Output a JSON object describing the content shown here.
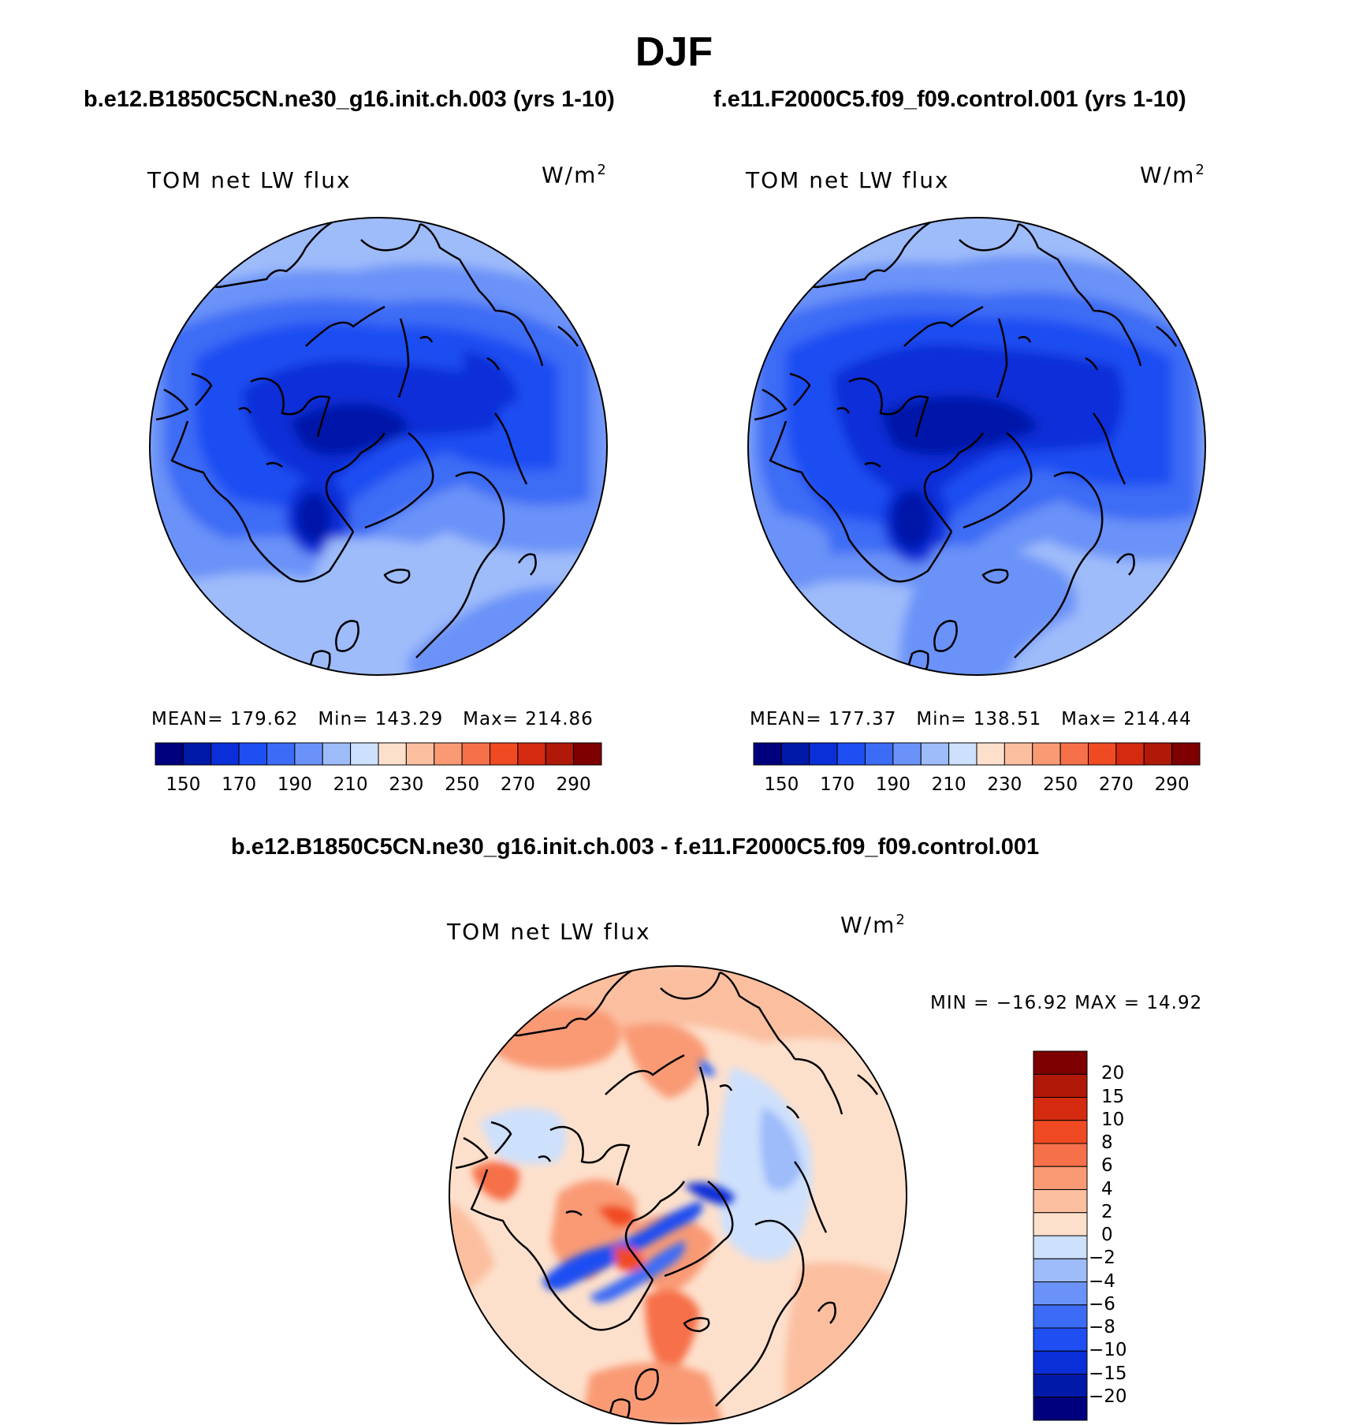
{
  "title": "DJF",
  "panels": [
    {
      "case_title": "b.e12.B1850C5CN.ne30_g16.init.ch.003 (yrs 1-10)",
      "variable": "TOM net LW flux",
      "units_base": "W/m",
      "units_exp": "2",
      "stats": {
        "mean_label": "MEAN=",
        "mean": "179.62",
        "min_label": "Min=",
        "min": "143.29",
        "max_label": "Max=",
        "max": "214.86"
      }
    },
    {
      "case_title": "f.e11.F2000C5.f09_f09.control.001 (yrs 1-10)",
      "variable": "TOM net LW flux",
      "units_base": "W/m",
      "units_exp": "2",
      "stats": {
        "mean_label": "MEAN=",
        "mean": "177.37",
        "min_label": "Min=",
        "min": "138.51",
        "max_label": "Max=",
        "max": "214.44"
      }
    }
  ],
  "diff_panel": {
    "case_title": "b.e12.B1850C5CN.ne30_g16.init.ch.003 - f.e11.F2000C5.f09_f09.control.001",
    "variable": "TOM net LW flux",
    "units_base": "W/m",
    "units_exp": "2",
    "minmax": "MIN = −16.92 MAX =   14.92"
  },
  "abs_colorbar": {
    "colors": [
      "#00007f",
      "#0019a8",
      "#0a2fd8",
      "#1f4ef2",
      "#3c6cf5",
      "#6a92f8",
      "#9ebbfa",
      "#cde0fc",
      "#fde0cc",
      "#fbbfa0",
      "#f99a74",
      "#f6704a",
      "#f04a22",
      "#d42a10",
      "#b01808",
      "#7e0000"
    ],
    "labels": [
      "150",
      "170",
      "190",
      "210",
      "230",
      "250",
      "270",
      "290"
    ]
  },
  "diff_colorbar": {
    "colors": [
      "#00007f",
      "#0019a8",
      "#0a2fd8",
      "#1f4ef2",
      "#3c6cf5",
      "#6a92f8",
      "#9ebbfa",
      "#cde0fc",
      "#fde0cc",
      "#fbbfa0",
      "#f99a74",
      "#f6704a",
      "#f04a22",
      "#d42a10",
      "#b01808",
      "#7e0000"
    ],
    "labels": [
      "20",
      "15",
      "10",
      "8",
      "6",
      "4",
      "2",
      "0",
      "−2",
      "−4",
      "−6",
      "−8",
      "−10",
      "−15",
      "−20"
    ]
  }
}
